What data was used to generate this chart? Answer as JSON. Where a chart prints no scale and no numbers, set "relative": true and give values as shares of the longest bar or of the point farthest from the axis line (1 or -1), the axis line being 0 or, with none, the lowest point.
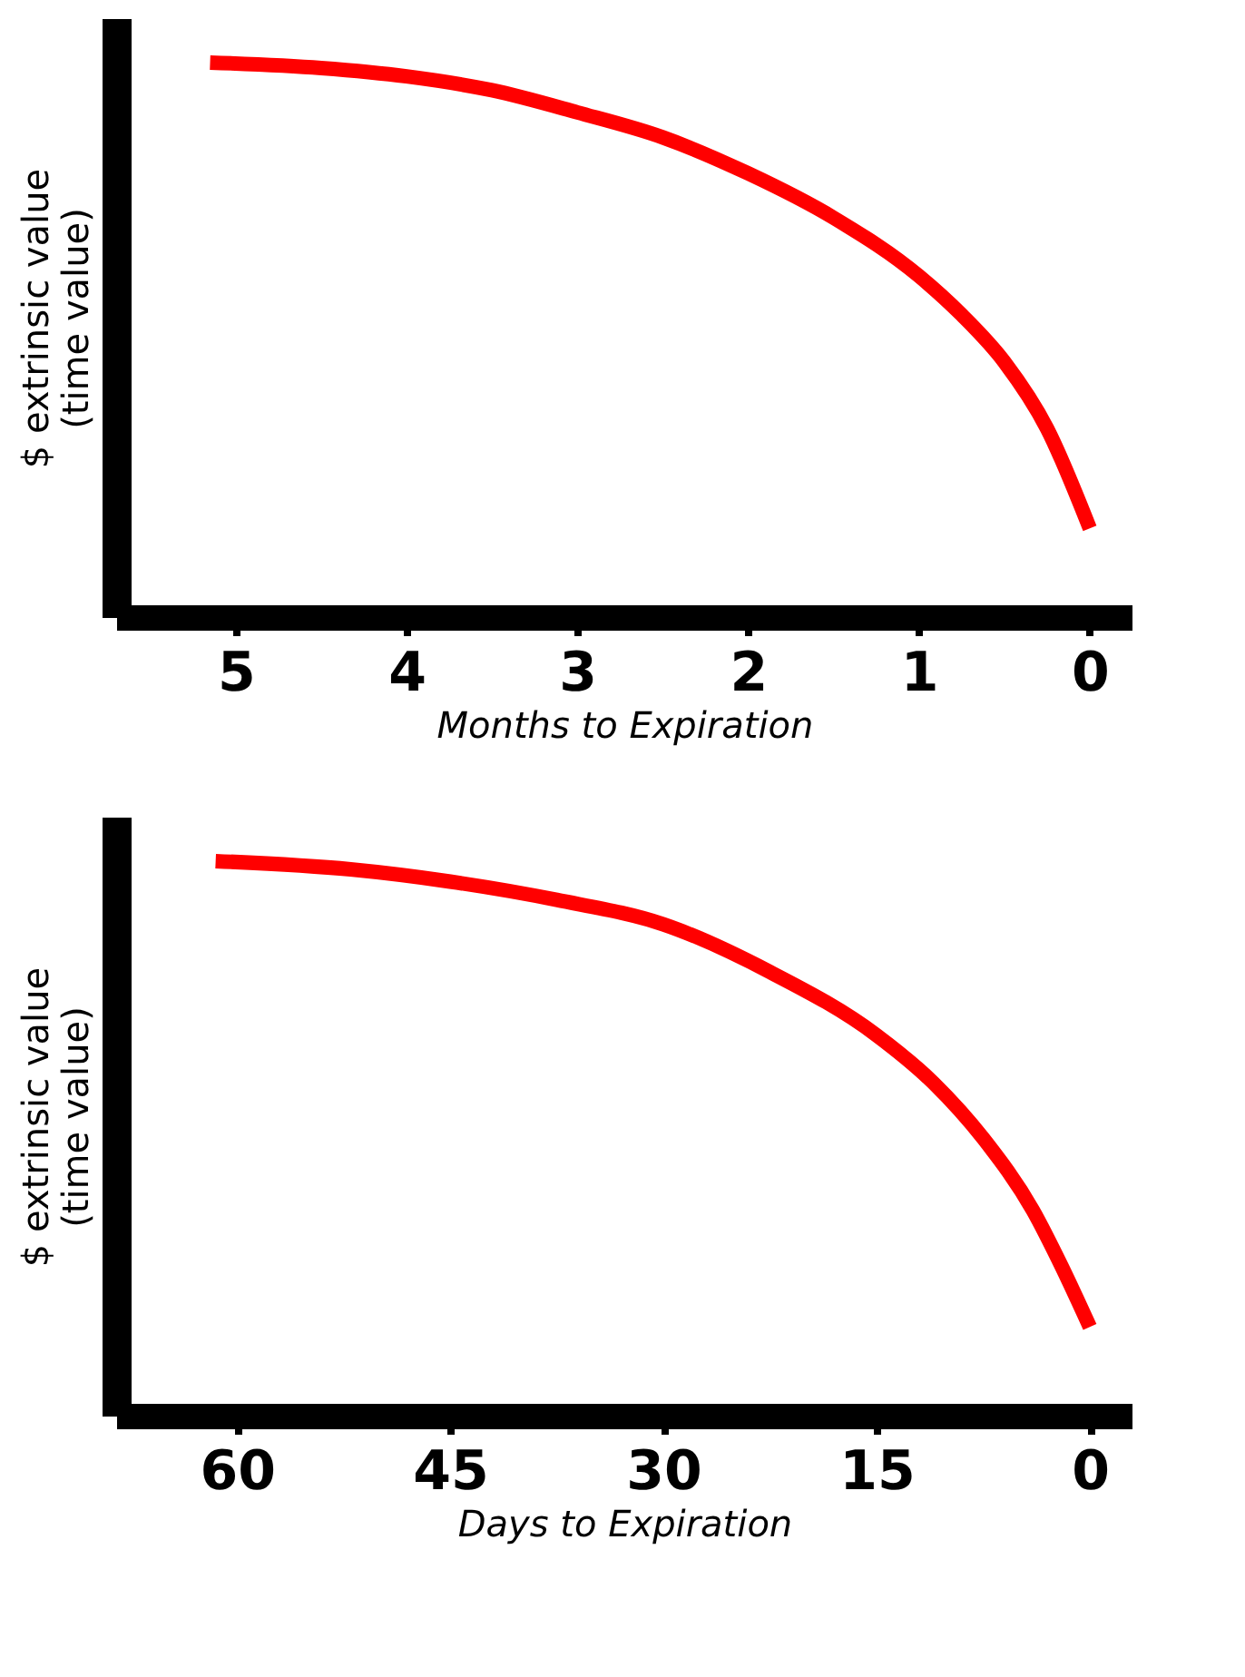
{
  "chart_data": [
    {
      "type": "line",
      "relative": true,
      "xlabel": "Months to Expiration",
      "ylabel": "$ extrinsic value\n(time value)",
      "x": [
        5.15,
        4.5,
        4,
        3.5,
        3,
        2.5,
        2,
        1.5,
        1,
        0.75,
        0.5,
        0.25,
        0
      ],
      "xlim": [
        5.7,
        -0.25
      ],
      "xticks": [
        5,
        4,
        3,
        2,
        1,
        0
      ],
      "tick_labels": "x",
      "grid": false,
      "series": [
        {
          "color": "#ff0000",
          "values": [
            1.0,
            0.99,
            0.975,
            0.95,
            0.91,
            0.865,
            0.8,
            0.72,
            0.615,
            0.545,
            0.46,
            0.34,
            0.16
          ]
        }
      ]
    },
    {
      "type": "line",
      "relative": true,
      "xlabel": "Days to Expiration",
      "ylabel": "$ extrinsic value\n(time value)",
      "x": [
        61.5,
        52,
        45,
        37.5,
        30,
        22.5,
        15,
        11,
        7.5,
        4,
        2,
        0
      ],
      "xlim": [
        68.5,
        -3
      ],
      "xticks": [
        60,
        45,
        30,
        15,
        0
      ],
      "tick_labels": "x",
      "grid": false,
      "series": [
        {
          "color": "#ff0000",
          "values": [
            1.0,
            0.985,
            0.963,
            0.93,
            0.886,
            0.8,
            0.686,
            0.6,
            0.5,
            0.37,
            0.27,
            0.16
          ]
        }
      ]
    }
  ]
}
